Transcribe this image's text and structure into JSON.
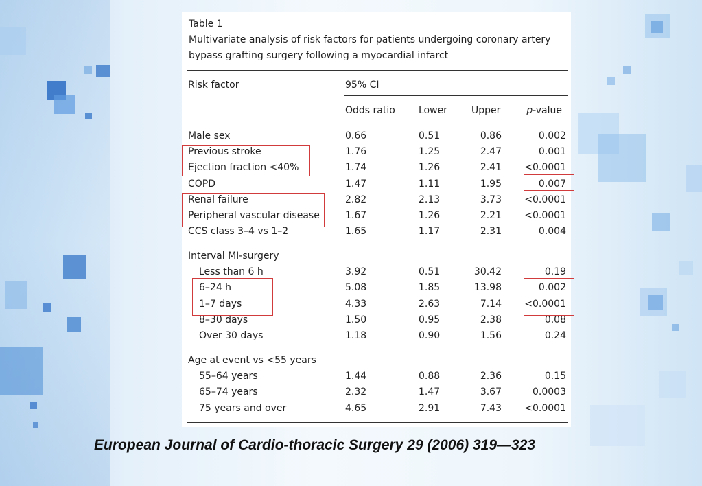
{
  "table": {
    "caption": "Table 1",
    "title": "Multivariate analysis of risk factors for patients undergoing coronary artery bypass grafting surgery following a myocardial infarct",
    "headers": {
      "risk_factor": "Risk factor",
      "ci": "95% CI",
      "odds_ratio": "Odds ratio",
      "lower": "Lower",
      "upper": "Upper",
      "p_value_italic": "p",
      "p_value_rest": "-value"
    },
    "groups": [
      {
        "label": "",
        "rows": [
          {
            "factor": "Male sex",
            "odds": "0.66",
            "lower": "0.51",
            "upper": "0.86",
            "p": "0.002"
          },
          {
            "factor": "Previous stroke",
            "odds": "1.76",
            "lower": "1.25",
            "upper": "2.47",
            "p": "0.001"
          },
          {
            "factor": "Ejection fraction <40%",
            "odds": "1.74",
            "lower": "1.26",
            "upper": "2.41",
            "p": "<0.0001"
          },
          {
            "factor": "COPD",
            "odds": "1.47",
            "lower": "1.11",
            "upper": "1.95",
            "p": "0.007"
          },
          {
            "factor": "Renal failure",
            "odds": "2.82",
            "lower": "2.13",
            "upper": "3.73",
            "p": "<0.0001"
          },
          {
            "factor": "Peripheral vascular disease",
            "odds": "1.67",
            "lower": "1.26",
            "upper": "2.21",
            "p": "<0.0001"
          },
          {
            "factor": "CCS class 3–4 vs 1–2",
            "odds": "1.65",
            "lower": "1.17",
            "upper": "2.31",
            "p": "0.004"
          }
        ]
      },
      {
        "label": "Interval MI-surgery",
        "rows": [
          {
            "factor": "Less than 6 h",
            "odds": "3.92",
            "lower": "0.51",
            "upper": "30.42",
            "p": "0.19"
          },
          {
            "factor": "6–24 h",
            "odds": "5.08",
            "lower": "1.85",
            "upper": "13.98",
            "p": "0.002"
          },
          {
            "factor": "1–7 days",
            "odds": "4.33",
            "lower": "2.63",
            "upper": "7.14",
            "p": "<0.0001"
          },
          {
            "factor": "8–30 days",
            "odds": "1.50",
            "lower": "0.95",
            "upper": "2.38",
            "p": "0.08"
          },
          {
            "factor": "Over 30 days",
            "odds": "1.18",
            "lower": "0.90",
            "upper": "1.56",
            "p": "0.24"
          }
        ]
      },
      {
        "label": "Age at event vs <55 years",
        "rows": [
          {
            "factor": "55–64 years",
            "odds": "1.44",
            "lower": "0.88",
            "upper": "2.36",
            "p": "0.15"
          },
          {
            "factor": "65–74 years",
            "odds": "2.32",
            "lower": "1.47",
            "upper": "3.67",
            "p": "0.0003"
          },
          {
            "factor": "75 years and over",
            "odds": "4.65",
            "lower": "2.91",
            "upper": "7.43",
            "p": "<0.0001"
          }
        ]
      }
    ]
  },
  "highlight_color": "#d23b3b",
  "citation": "European Journal of Cardio-thoracic Surgery 29 (2006) 319—323"
}
